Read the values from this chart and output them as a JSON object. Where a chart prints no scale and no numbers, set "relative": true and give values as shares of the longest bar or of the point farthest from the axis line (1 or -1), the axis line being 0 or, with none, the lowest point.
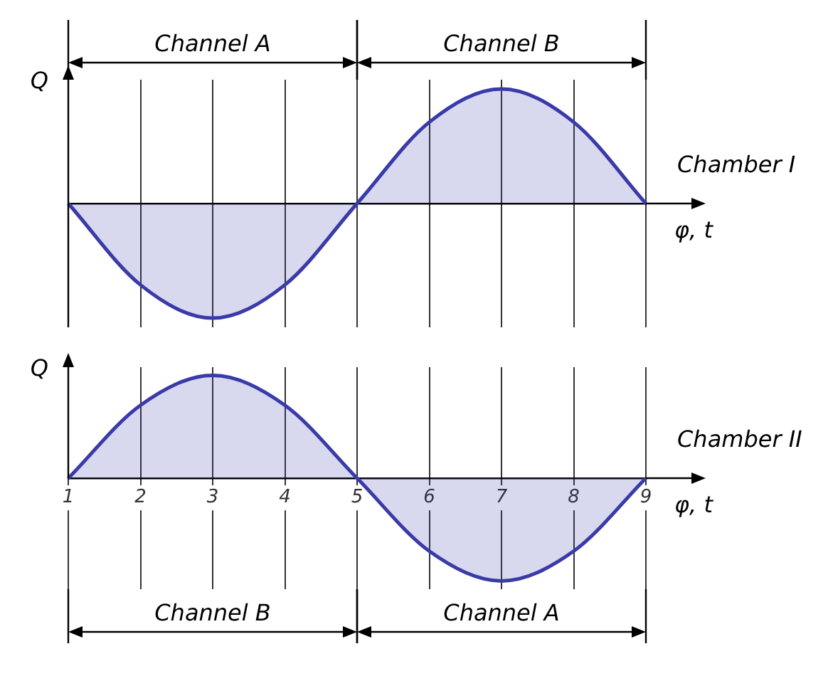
{
  "chart_data": [
    {
      "type": "area",
      "relative": true,
      "categories": [
        "1",
        "2",
        "3",
        "4",
        "5",
        "6",
        "7",
        "8",
        "9"
      ],
      "tick_labels": false,
      "ylabel": "Q",
      "xlabel": "φ, t",
      "grid": "x",
      "series": [
        {
          "color": "#3a3aa8",
          "values": [
            0,
            -0.71,
            -1,
            -0.71,
            0,
            0.71,
            1,
            0.71,
            0
          ]
        }
      ],
      "annotations": [
        "Channel A",
        "Channel B",
        "Chamber I"
      ]
    },
    {
      "type": "area",
      "relative": true,
      "categories": [
        "1",
        "2",
        "3",
        "4",
        "5",
        "6",
        "7",
        "8",
        "9"
      ],
      "tick_labels": "x",
      "ylabel": "Q",
      "xlabel": "φ, t",
      "grid": "x",
      "series": [
        {
          "color": "#3a3aa8",
          "values": [
            0,
            0.71,
            1,
            0.71,
            0,
            -0.71,
            -1,
            -0.71,
            0
          ]
        }
      ],
      "annotations": [
        "Channel B",
        "Channel A",
        "Chamber II"
      ]
    }
  ]
}
